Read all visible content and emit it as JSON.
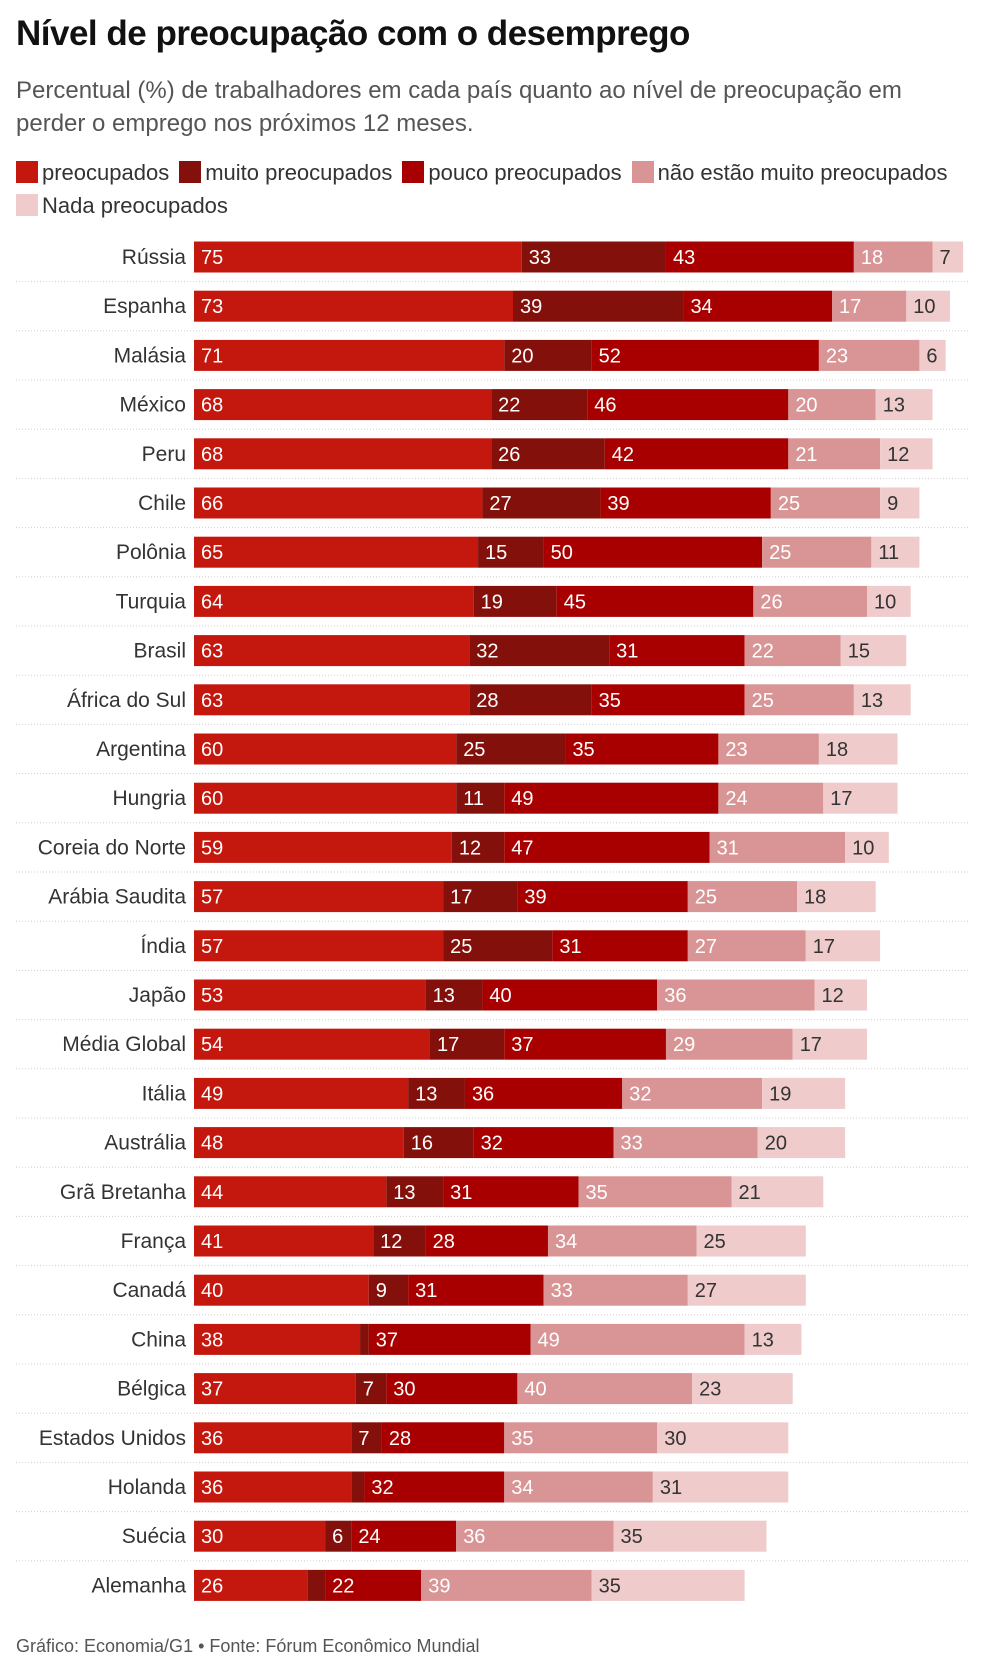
{
  "title": "Nível de preocupação com o desemprego",
  "subtitle": "Percentual (%) de trabalhadores em cada país quanto ao nível de preocupação em perder o emprego nos próximos 12 meses.",
  "footer": "Gráfico: Economia/G1 • Fonte: Fórum Econômico Mundial",
  "chart_data": {
    "type": "bar",
    "orientation": "horizontal",
    "stacked": true,
    "legend_position": "top",
    "grid": false,
    "categories": [
      "Rússia",
      "Espanha",
      "Malásia",
      "México",
      "Peru",
      "Chile",
      "Polônia",
      "Turquia",
      "Brasil",
      "África do Sul",
      "Argentina",
      "Hungria",
      "Coreia do Norte",
      "Arábia Saudita",
      "Índia",
      "Japão",
      "Média Global",
      "Itália",
      "Austrália",
      "Grã Bretanha",
      "França",
      "Canadá",
      "China",
      "Bélgica",
      "Estados Unidos",
      "Holanda",
      "Suécia",
      "Alemanha"
    ],
    "series": [
      {
        "name": "preocupados",
        "color": "#c4170e",
        "label_color": "#ffffff",
        "values": [
          75,
          73,
          71,
          68,
          68,
          66,
          65,
          64,
          63,
          63,
          60,
          60,
          59,
          57,
          57,
          53,
          54,
          49,
          48,
          44,
          41,
          40,
          38,
          37,
          36,
          36,
          30,
          26
        ]
      },
      {
        "name": "muito preocupados",
        "color": "#84100b",
        "label_color": "#ffffff",
        "values": [
          33,
          39,
          20,
          22,
          26,
          27,
          15,
          19,
          32,
          28,
          25,
          11,
          12,
          17,
          25,
          13,
          17,
          13,
          16,
          13,
          12,
          9,
          2,
          7,
          7,
          3,
          6,
          4
        ]
      },
      {
        "name": "pouco preocupados",
        "color": "#a80000",
        "label_color": "#ffffff",
        "values": [
          43,
          34,
          52,
          46,
          42,
          39,
          50,
          45,
          31,
          35,
          35,
          49,
          47,
          39,
          31,
          40,
          37,
          36,
          32,
          31,
          28,
          31,
          37,
          30,
          28,
          32,
          24,
          22
        ]
      },
      {
        "name": "não estão muito preocupados",
        "color": "#d99595",
        "label_color": "#ffffff",
        "values": [
          18,
          17,
          23,
          20,
          21,
          25,
          25,
          26,
          22,
          25,
          23,
          24,
          31,
          25,
          27,
          36,
          29,
          32,
          33,
          35,
          34,
          33,
          49,
          40,
          35,
          34,
          36,
          39
        ]
      },
      {
        "name": "Nada preocupados",
        "color": "#efcbcb",
        "label_color": "#333333",
        "values": [
          7,
          10,
          6,
          13,
          12,
          9,
          11,
          10,
          15,
          13,
          18,
          17,
          10,
          18,
          17,
          12,
          17,
          19,
          20,
          21,
          25,
          27,
          13,
          23,
          30,
          31,
          35,
          35
        ]
      }
    ]
  }
}
